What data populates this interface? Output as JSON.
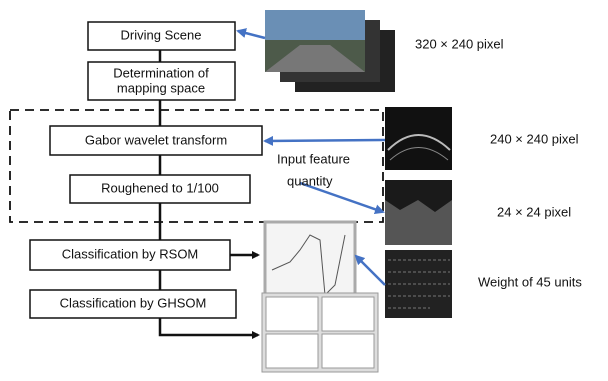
{
  "nodes": [
    {
      "label": "Driving Scene"
    },
    {
      "label_lines": [
        "Determination of",
        "mapping space"
      ]
    },
    {
      "label": "Gabor wavelet transform"
    },
    {
      "label": "Roughened to 1/100"
    },
    {
      "label": "Classification by RSOM"
    },
    {
      "label": "Classification by GHSOM"
    }
  ],
  "notes": [
    {
      "label": "320 × 240 pixel"
    },
    {
      "label": "240 × 240 pixel"
    },
    {
      "label_lines": [
        "Input feature",
        "quantity"
      ]
    },
    {
      "label": "24 × 24 pixel"
    },
    {
      "label": "Weight of 45 units"
    }
  ]
}
